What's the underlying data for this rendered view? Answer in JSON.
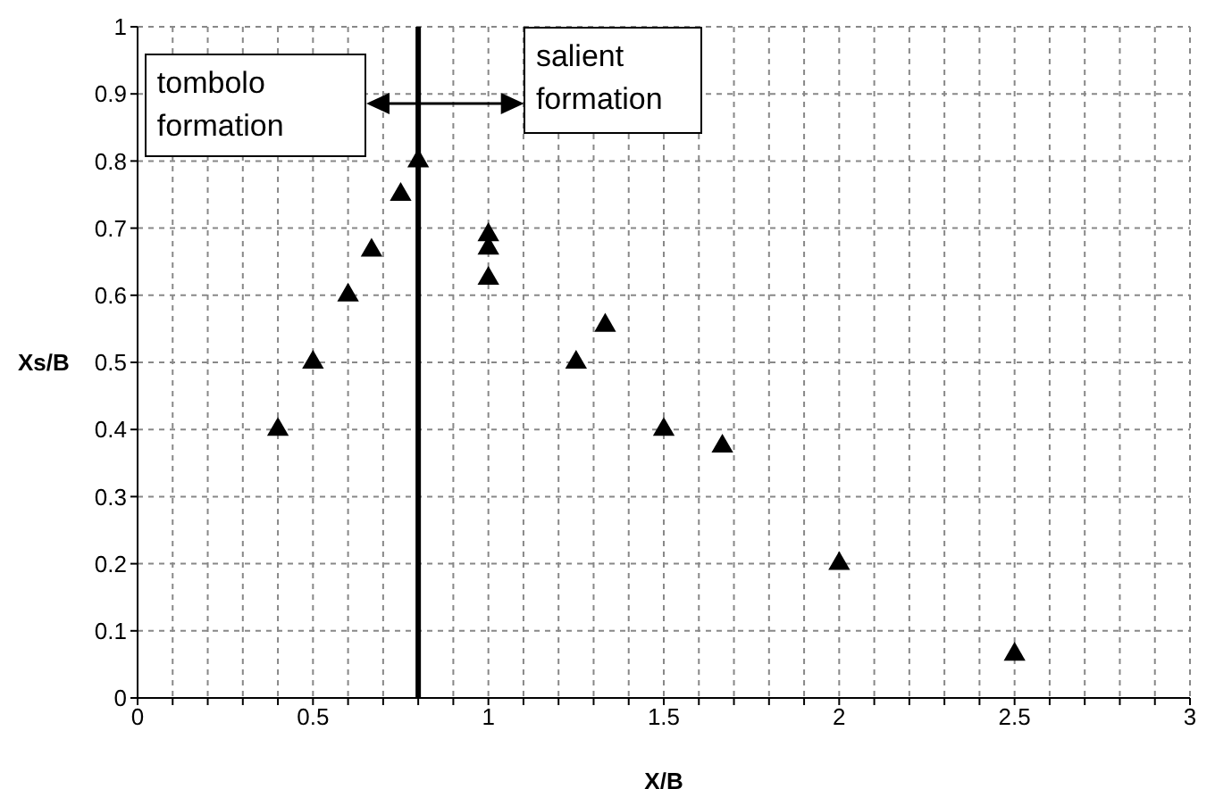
{
  "chart_data": {
    "type": "scatter",
    "xlabel": "X/B",
    "ylabel": "Xs/B",
    "x": [
      0.4,
      0.5,
      0.6,
      0.667,
      0.75,
      0.8,
      1,
      1,
      1,
      1.25,
      1.333,
      1.5,
      1.667,
      2,
      2.5
    ],
    "values": [
      0.4,
      0.5,
      0.6,
      0.667,
      0.75,
      0.8,
      0.69,
      0.67,
      0.625,
      0.5,
      0.555,
      0.4,
      0.375,
      0.2,
      0.065
    ],
    "color": "#000000",
    "marker": "triangle",
    "xlim": [
      0,
      3
    ],
    "xticks": [
      0,
      {
        "value": 0.1,
        "label": null
      },
      {
        "value": 0.2,
        "label": null
      },
      {
        "value": 0.3,
        "label": null
      },
      {
        "value": 0.4,
        "label": null
      },
      0.5,
      {
        "value": 0.6,
        "label": null
      },
      {
        "value": 0.7,
        "label": null
      },
      {
        "value": 0.8,
        "label": null
      },
      {
        "value": 0.9,
        "label": null
      },
      1,
      {
        "value": 1.1,
        "label": null
      },
      {
        "value": 1.2,
        "label": null
      },
      {
        "value": 1.3,
        "label": null
      },
      {
        "value": 1.4,
        "label": null
      },
      1.5,
      {
        "value": 1.6,
        "label": null
      },
      {
        "value": 1.7,
        "label": null
      },
      {
        "value": 1.8,
        "label": null
      },
      {
        "value": 1.9,
        "label": null
      },
      2,
      {
        "value": 2.1,
        "label": null
      },
      {
        "value": 2.2,
        "label": null
      },
      {
        "value": 2.3,
        "label": null
      },
      {
        "value": 2.4,
        "label": null
      },
      2.5,
      {
        "value": 2.6,
        "label": null
      },
      {
        "value": 2.7,
        "label": null
      },
      {
        "value": 2.8,
        "label": null
      },
      {
        "value": 2.9,
        "label": null
      },
      3
    ],
    "ylim": [
      0,
      1
    ],
    "yticks": [
      0,
      0.1,
      0.2,
      0.3,
      0.4,
      0.5,
      0.6,
      0.7,
      0.8,
      0.9,
      1
    ],
    "grid": true,
    "ref_lines": [
      {
        "axis": "x",
        "value": 0.8,
        "color": "#000000"
      }
    ],
    "annotations": [
      "tombolo formation",
      "salient formation"
    ]
  }
}
